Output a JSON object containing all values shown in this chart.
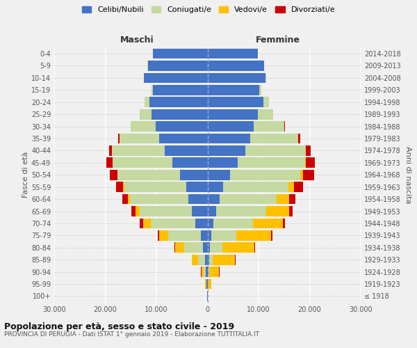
{
  "age_groups": [
    "100+",
    "95-99",
    "90-94",
    "85-89",
    "80-84",
    "75-79",
    "70-74",
    "65-69",
    "60-64",
    "55-59",
    "50-54",
    "45-49",
    "40-44",
    "35-39",
    "30-34",
    "25-29",
    "20-24",
    "15-19",
    "10-14",
    "5-9",
    "0-4"
  ],
  "birth_years": [
    "≤ 1918",
    "1919-1923",
    "1924-1928",
    "1929-1933",
    "1934-1938",
    "1939-1943",
    "1944-1948",
    "1949-1953",
    "1954-1958",
    "1959-1963",
    "1964-1968",
    "1969-1973",
    "1974-1978",
    "1979-1983",
    "1984-1988",
    "1989-1993",
    "1994-1998",
    "1999-2003",
    "2004-2008",
    "2009-2013",
    "2014-2018"
  ],
  "colors": {
    "celibi": "#4472c4",
    "coniugati": "#c5d9a0",
    "vedovi": "#ffc000",
    "divorziati": "#cc0000"
  },
  "maschi": {
    "celibi": [
      80,
      190,
      340,
      480,
      820,
      1350,
      2400,
      3100,
      3700,
      4100,
      5400,
      6900,
      8400,
      9400,
      10100,
      10900,
      11400,
      10700,
      12400,
      11700,
      10700
    ],
    "coniugati": [
      0,
      80,
      380,
      1400,
      3800,
      6300,
      8700,
      10200,
      11500,
      12200,
      12200,
      11700,
      10300,
      7800,
      4900,
      2400,
      900,
      250,
      40,
      8,
      0
    ],
    "vedovi": [
      15,
      180,
      480,
      1150,
      1700,
      1750,
      1450,
      780,
      380,
      190,
      70,
      35,
      15,
      8,
      0,
      0,
      0,
      0,
      0,
      0,
      0
    ],
    "divorziati": [
      0,
      0,
      25,
      70,
      190,
      280,
      680,
      780,
      1150,
      1450,
      1450,
      1150,
      580,
      280,
      90,
      25,
      0,
      0,
      0,
      0,
      0
    ]
  },
  "femmine": {
    "celibi": [
      40,
      90,
      180,
      280,
      480,
      780,
      1150,
      1750,
      2400,
      3100,
      4400,
      5900,
      7400,
      8400,
      9100,
      9900,
      10900,
      10100,
      11400,
      11100,
      9900
    ],
    "coniugati": [
      0,
      40,
      180,
      750,
      2400,
      4900,
      7800,
      9800,
      11200,
      12700,
      13700,
      13200,
      11800,
      9300,
      5900,
      2900,
      1150,
      380,
      70,
      8,
      0
    ],
    "vedovi": [
      90,
      580,
      1950,
      4400,
      6300,
      6800,
      5800,
      4400,
      2400,
      1150,
      580,
      190,
      70,
      25,
      8,
      0,
      0,
      0,
      0,
      0,
      0
    ],
    "divorziati": [
      0,
      0,
      25,
      70,
      140,
      280,
      480,
      680,
      1150,
      1750,
      2150,
      1750,
      980,
      480,
      140,
      45,
      8,
      0,
      0,
      0,
      0
    ]
  },
  "xlim": 30000,
  "xticks": [
    -30000,
    -20000,
    -10000,
    0,
    10000,
    20000,
    30000
  ],
  "xtick_labels": [
    "30.000",
    "20.000",
    "10.000",
    "0",
    "10.000",
    "20.000",
    "30.000"
  ],
  "title_main": "Popolazione per età, sesso e stato civile - 2019",
  "title_sub": "PROVINCIA DI PERUGIA - Dati ISTAT 1° gennaio 2019 - Elaborazione TUTTITALIA.IT",
  "legend_labels": [
    "Celibi/Nubili",
    "Coniugati/e",
    "Vedovi/e",
    "Divorziati/e"
  ],
  "ylabel_left": "Fasce di età",
  "ylabel_right": "Anni di nascita",
  "header_left": "Maschi",
  "header_right": "Femmine",
  "background_color": "#f0f0f0",
  "plot_background": "#f0f0f0"
}
